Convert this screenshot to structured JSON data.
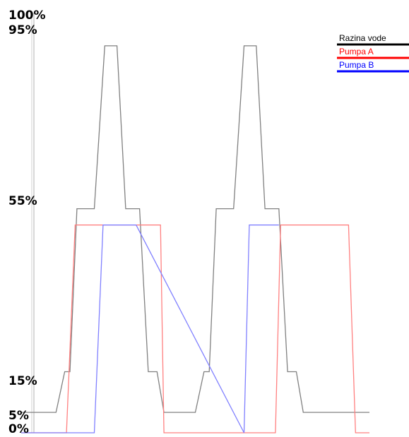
{
  "chart_data": {
    "type": "line",
    "title": "",
    "xlabel": "",
    "ylabel": "",
    "ylim": [
      0,
      100
    ],
    "y_ticks": [
      {
        "value": 100,
        "label": "100%"
      },
      {
        "value": 95,
        "label": "95%"
      },
      {
        "value": 55,
        "label": "55%"
      },
      {
        "value": 15,
        "label": "15%"
      },
      {
        "value": 5,
        "label": "5%"
      },
      {
        "value": 0,
        "label": "0%"
      }
    ],
    "xlim": [
      0,
      100
    ],
    "grid": false,
    "legend_position": "top-right",
    "series": [
      {
        "name": "Razina vode",
        "color": "#000000",
        "line_color": "#808080",
        "points": [
          [
            0,
            5
          ],
          [
            10,
            5
          ],
          [
            12.5,
            15
          ],
          [
            14,
            15
          ],
          [
            16,
            55
          ],
          [
            21,
            55
          ],
          [
            24,
            95
          ],
          [
            27.5,
            95
          ],
          [
            30,
            55
          ],
          [
            34,
            55
          ],
          [
            36.5,
            15
          ],
          [
            39,
            15
          ],
          [
            41,
            5
          ],
          [
            50,
            5
          ],
          [
            52.5,
            15
          ],
          [
            54,
            15
          ],
          [
            56,
            55
          ],
          [
            61,
            55
          ],
          [
            64,
            95
          ],
          [
            67.5,
            95
          ],
          [
            70,
            55
          ],
          [
            74,
            55
          ],
          [
            76.5,
            15
          ],
          [
            79,
            15
          ],
          [
            81,
            5
          ],
          [
            100,
            5
          ]
        ]
      },
      {
        "name": "Pumpa A",
        "color": "#ff0000",
        "line_color": "#ff8080",
        "points": [
          [
            0,
            0
          ],
          [
            13,
            0
          ],
          [
            15.5,
            51
          ],
          [
            40,
            51
          ],
          [
            41,
            0
          ],
          [
            73,
            0
          ],
          [
            74.5,
            51
          ],
          [
            94,
            51
          ],
          [
            96,
            0
          ],
          [
            100,
            0
          ]
        ]
      },
      {
        "name": "Pumpa B",
        "color": "#0000ff",
        "line_color": "#8080ff",
        "points": [
          [
            0,
            0
          ],
          [
            21,
            0
          ],
          [
            23.5,
            51
          ],
          [
            25,
            51
          ],
          [
            33,
            51
          ],
          [
            64,
            0
          ],
          [
            65.5,
            51
          ],
          [
            74,
            51
          ]
        ]
      }
    ]
  }
}
